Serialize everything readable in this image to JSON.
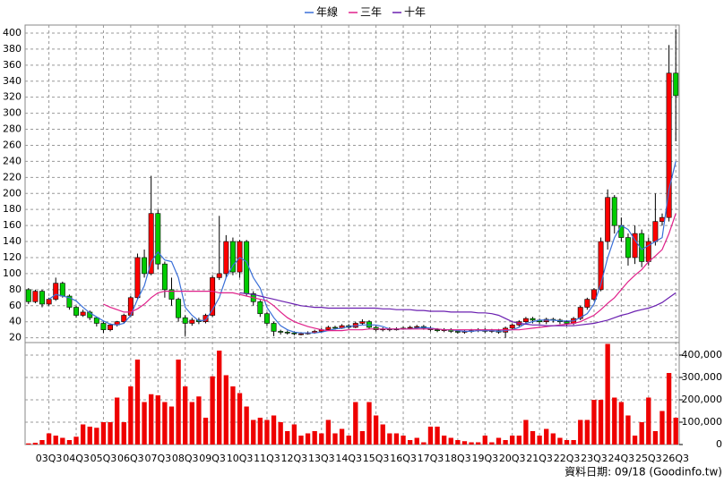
{
  "chart_data": {
    "type": "candlestick",
    "categories": [
      null,
      null,
      null,
      "03Q3",
      null,
      null,
      null,
      "04Q3",
      null,
      null,
      null,
      "05Q3",
      null,
      null,
      null,
      "06Q3",
      null,
      null,
      null,
      "07Q3",
      null,
      null,
      null,
      "08Q3",
      null,
      null,
      null,
      "09Q3",
      null,
      null,
      null,
      "10Q3",
      null,
      null,
      null,
      "11Q3",
      null,
      null,
      null,
      "12Q3",
      null,
      null,
      null,
      "13Q3",
      null,
      null,
      null,
      "14Q3",
      null,
      null,
      null,
      "15Q3",
      null,
      null,
      null,
      "16Q3",
      null,
      null,
      null,
      "17Q3",
      null,
      null,
      null,
      "18Q3",
      null,
      null,
      null,
      "19Q3",
      null,
      null,
      null,
      "20Q3",
      null,
      null,
      null,
      "21Q3",
      null,
      null,
      null,
      "22Q3",
      null,
      null,
      null,
      "23Q3",
      null,
      null,
      null,
      "24Q3",
      null,
      null,
      null,
      "25Q3",
      null,
      null,
      null,
      "26Q3"
    ],
    "open": [
      80,
      65,
      78,
      62,
      68,
      88,
      72,
      58,
      48,
      52,
      45,
      38,
      30,
      36,
      40,
      48,
      70,
      120,
      100,
      175,
      112,
      80,
      68,
      45,
      38,
      42,
      40,
      48,
      95,
      100,
      140,
      102,
      140,
      75,
      65,
      50,
      38,
      28,
      27,
      26,
      25,
      25,
      26,
      28,
      30,
      33,
      32,
      35,
      33,
      38,
      40,
      33,
      30,
      31,
      30,
      31,
      32,
      33,
      34,
      32,
      30,
      29,
      30,
      28,
      27,
      28,
      29,
      30,
      28,
      29,
      27,
      32,
      36,
      40,
      44,
      42,
      40,
      43,
      42,
      40,
      38,
      44,
      58,
      68,
      80,
      140,
      195,
      160,
      145,
      120,
      150,
      115,
      140,
      165,
      170,
      350
    ],
    "high": [
      82,
      80,
      80,
      70,
      95,
      90,
      74,
      60,
      55,
      54,
      46,
      40,
      38,
      41,
      50,
      72,
      125,
      130,
      222,
      180,
      115,
      95,
      70,
      48,
      45,
      45,
      50,
      98,
      172,
      148,
      145,
      142,
      142,
      78,
      67,
      52,
      40,
      30,
      29,
      28,
      27,
      28,
      30,
      32,
      35,
      35,
      37,
      37,
      40,
      43,
      42,
      35,
      33,
      33,
      33,
      34,
      35,
      36,
      36,
      34,
      32,
      32,
      32,
      30,
      30,
      31,
      32,
      32,
      31,
      31,
      34,
      38,
      42,
      46,
      46,
      44,
      45,
      45,
      44,
      42,
      46,
      60,
      70,
      82,
      145,
      205,
      198,
      170,
      150,
      160,
      155,
      145,
      200,
      175,
      385,
      405
    ],
    "low": [
      62,
      63,
      58,
      60,
      66,
      70,
      55,
      45,
      46,
      42,
      34,
      26,
      28,
      34,
      38,
      46,
      68,
      95,
      98,
      105,
      70,
      60,
      40,
      22,
      35,
      37,
      38,
      46,
      92,
      95,
      98,
      95,
      72,
      60,
      46,
      35,
      22,
      24,
      24,
      23,
      23,
      24,
      25,
      27,
      29,
      30,
      31,
      31,
      32,
      36,
      31,
      28,
      28,
      28,
      29,
      30,
      31,
      31,
      30,
      28,
      27,
      27,
      26,
      25,
      25,
      26,
      27,
      26,
      26,
      25,
      20,
      30,
      34,
      38,
      38,
      37,
      37,
      39,
      37,
      35,
      36,
      42,
      55,
      66,
      78,
      130,
      150,
      140,
      110,
      112,
      108,
      110,
      135,
      160,
      165,
      265
    ],
    "close": [
      65,
      78,
      62,
      68,
      88,
      72,
      58,
      48,
      52,
      45,
      38,
      30,
      36,
      40,
      48,
      70,
      120,
      100,
      175,
      112,
      80,
      68,
      45,
      38,
      42,
      40,
      48,
      95,
      100,
      140,
      102,
      140,
      75,
      65,
      50,
      38,
      28,
      27,
      26,
      25,
      25,
      26,
      28,
      30,
      33,
      32,
      35,
      33,
      38,
      40,
      33,
      30,
      31,
      30,
      31,
      32,
      33,
      34,
      32,
      30,
      29,
      30,
      28,
      27,
      28,
      29,
      30,
      28,
      29,
      27,
      32,
      36,
      40,
      44,
      42,
      40,
      43,
      42,
      40,
      38,
      44,
      58,
      68,
      80,
      140,
      195,
      160,
      145,
      120,
      150,
      115,
      140,
      165,
      170,
      350,
      322
    ],
    "up_color": "#ff0000",
    "down_color": "#00cc00",
    "series": [
      {
        "name": "年線",
        "color": "#3a6fd8",
        "values": [
          null,
          null,
          null,
          68,
          74,
          72,
          70,
          66,
          58,
          51,
          46,
          41,
          37,
          36,
          38,
          48,
          68,
          85,
          115,
          127,
          117,
          115,
          95,
          58,
          48,
          41,
          42,
          55,
          70,
          95,
          110,
          120,
          115,
          95,
          82,
          58,
          45,
          35,
          30,
          27,
          26,
          26,
          26,
          27,
          29,
          31,
          32,
          34,
          35,
          36,
          36,
          36,
          34,
          31,
          31,
          31,
          31,
          32,
          33,
          32,
          31,
          30,
          30,
          29,
          28,
          28,
          29,
          29,
          29,
          28,
          29,
          30,
          33,
          38,
          40,
          42,
          42,
          42,
          41,
          41,
          41,
          45,
          50,
          62,
          87,
          120,
          145,
          160,
          155,
          142,
          130,
          135,
          140,
          145,
          205,
          240
        ]
      },
      {
        "name": "三年",
        "color": "#e0208a",
        "values": [
          null,
          null,
          null,
          null,
          null,
          null,
          null,
          null,
          null,
          null,
          null,
          62,
          58,
          55,
          52,
          52,
          56,
          62,
          70,
          76,
          78,
          78,
          78,
          78,
          78,
          78,
          78,
          78,
          76,
          76,
          76,
          74,
          72,
          70,
          68,
          66,
          60,
          52,
          45,
          40,
          37,
          34,
          32,
          30,
          29,
          29,
          29,
          30,
          30,
          30,
          31,
          31,
          31,
          31,
          31,
          31,
          31,
          31,
          31,
          31,
          31,
          30,
          30,
          30,
          30,
          30,
          30,
          30,
          30,
          30,
          30,
          30,
          30,
          31,
          32,
          33,
          34,
          35,
          36,
          37,
          38,
          40,
          44,
          48,
          55,
          63,
          70,
          80,
          90,
          98,
          105,
          115,
          122,
          130,
          150,
          175
        ]
      },
      {
        "name": "十年",
        "color": "#6a1fb0",
        "values": [
          null,
          null,
          null,
          null,
          null,
          null,
          null,
          null,
          null,
          null,
          null,
          null,
          null,
          null,
          null,
          null,
          null,
          null,
          null,
          null,
          null,
          null,
          null,
          null,
          null,
          null,
          null,
          null,
          null,
          null,
          null,
          76,
          75,
          74,
          72,
          70,
          68,
          66,
          64,
          62,
          60,
          59,
          58,
          58,
          57,
          57,
          57,
          57,
          57,
          57,
          57,
          57,
          56,
          56,
          55,
          55,
          55,
          54,
          54,
          53,
          53,
          53,
          52,
          52,
          52,
          52,
          51,
          51,
          50,
          48,
          44,
          40,
          38,
          37,
          36,
          36,
          35,
          35,
          35,
          35,
          35,
          36,
          37,
          38,
          40,
          42,
          45,
          48,
          50,
          53,
          55,
          57,
          60,
          64,
          70,
          76
        ]
      }
    ],
    "volume": {
      "color": "#ee0000",
      "axis": "y2",
      "values": [
        5000,
        8000,
        20000,
        50000,
        40000,
        30000,
        20000,
        35000,
        90000,
        80000,
        75000,
        100000,
        100000,
        210000,
        100000,
        260000,
        380000,
        190000,
        225000,
        220000,
        190000,
        170000,
        380000,
        260000,
        190000,
        215000,
        120000,
        305000,
        420000,
        310000,
        260000,
        230000,
        170000,
        110000,
        120000,
        110000,
        130000,
        100000,
        60000,
        90000,
        40000,
        50000,
        60000,
        50000,
        110000,
        50000,
        70000,
        40000,
        190000,
        60000,
        190000,
        130000,
        90000,
        50000,
        50000,
        40000,
        20000,
        30000,
        10000,
        80000,
        80000,
        40000,
        30000,
        20000,
        15000,
        10000,
        10000,
        40000,
        10000,
        30000,
        20000,
        40000,
        40000,
        110000,
        60000,
        40000,
        70000,
        50000,
        30000,
        20000,
        20000,
        110000,
        110000,
        200000,
        200000,
        450000,
        210000,
        190000,
        130000,
        40000,
        100000,
        210000,
        60000,
        150000,
        320000,
        120000
      ]
    },
    "ylim": [
      14,
      410
    ],
    "yticks": [
      20,
      40,
      60,
      80,
      100,
      120,
      140,
      160,
      180,
      200,
      220,
      240,
      260,
      280,
      300,
      320,
      340,
      360,
      380,
      400
    ],
    "y2lim": [
      0,
      456000
    ],
    "y2ticks": [
      0,
      {
        "value": 100000,
        "label": "100,000"
      },
      {
        "value": 200000,
        "label": "200,000"
      },
      {
        "value": 300000,
        "label": "300,000"
      },
      {
        "value": 400000,
        "label": "400,000"
      }
    ],
    "grid": true,
    "legend": "top",
    "footer": "資料日期: 09/18  (Goodinfo.tw)"
  }
}
